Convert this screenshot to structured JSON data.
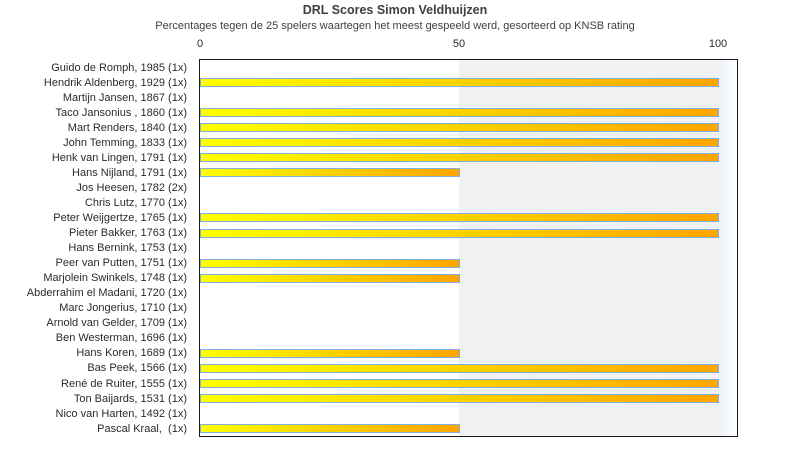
{
  "chart_data": {
    "type": "bar",
    "orientation": "horizontal",
    "title": "DRL Scores Simon Veldhuijzen",
    "subtitle": "Percentages tegen de 25 spelers waartegen het meest gespeeld werd, gesorteerd op KNSB rating",
    "xlabel": "",
    "ylabel": "",
    "xlim": [
      0,
      103.5
    ],
    "x_ticks": [
      "0",
      "50",
      "100"
    ],
    "grid": false,
    "legend": "none",
    "categories": [
      "Guido de Romph, 1985 (1x)",
      "Hendrik Aldenberg, 1929 (1x)",
      "Martijn Jansen, 1867 (1x)",
      "Taco Jansonius , 1860 (1x)",
      "Mart Renders, 1840 (1x)",
      "John Temming, 1833 (1x)",
      "Henk van Lingen, 1791 (1x)",
      "Hans Nijland, 1791 (1x)",
      "Jos Heesen, 1782 (2x)",
      "Chris Lutz, 1770 (1x)",
      "Peter Weijgertze, 1765 (1x)",
      "Pieter Bakker, 1763 (1x)",
      "Hans Bernink, 1753 (1x)",
      "Peer van Putten, 1751 (1x)",
      "Marjolein Swinkels, 1748 (1x)",
      "Abderrahim el Madani, 1720 (1x)",
      "Marc Jongerius, 1710 (1x)",
      "Arnold van Gelder, 1709 (1x)",
      "Ben Westerman, 1696 (1x)",
      "Hans Koren, 1689 (1x)",
      "Bas Peek, 1566 (1x)",
      "René de Ruiter, 1555 (1x)",
      "Ton Baijards, 1531 (1x)",
      "Nico van Harten, 1492 (1x)",
      "Pascal Kraal,  (1x)"
    ],
    "values": [
      0,
      100,
      0,
      100,
      100,
      100,
      100,
      50,
      0,
      0,
      100,
      100,
      0,
      50,
      50,
      0,
      0,
      0,
      0,
      50,
      100,
      100,
      100,
      0,
      50
    ],
    "colors": {
      "bar_gradient_start": "#ffff00",
      "bar_gradient_end": "#ffa500",
      "bar_border": "#7db0e0",
      "band_50_100": "#f1f1f2",
      "band_beyond_100_start": "#eaf1f9",
      "band_beyond_100_end": "#ffffff",
      "plot_border": "#1a1a1a",
      "text": "#2b2b2b"
    }
  }
}
